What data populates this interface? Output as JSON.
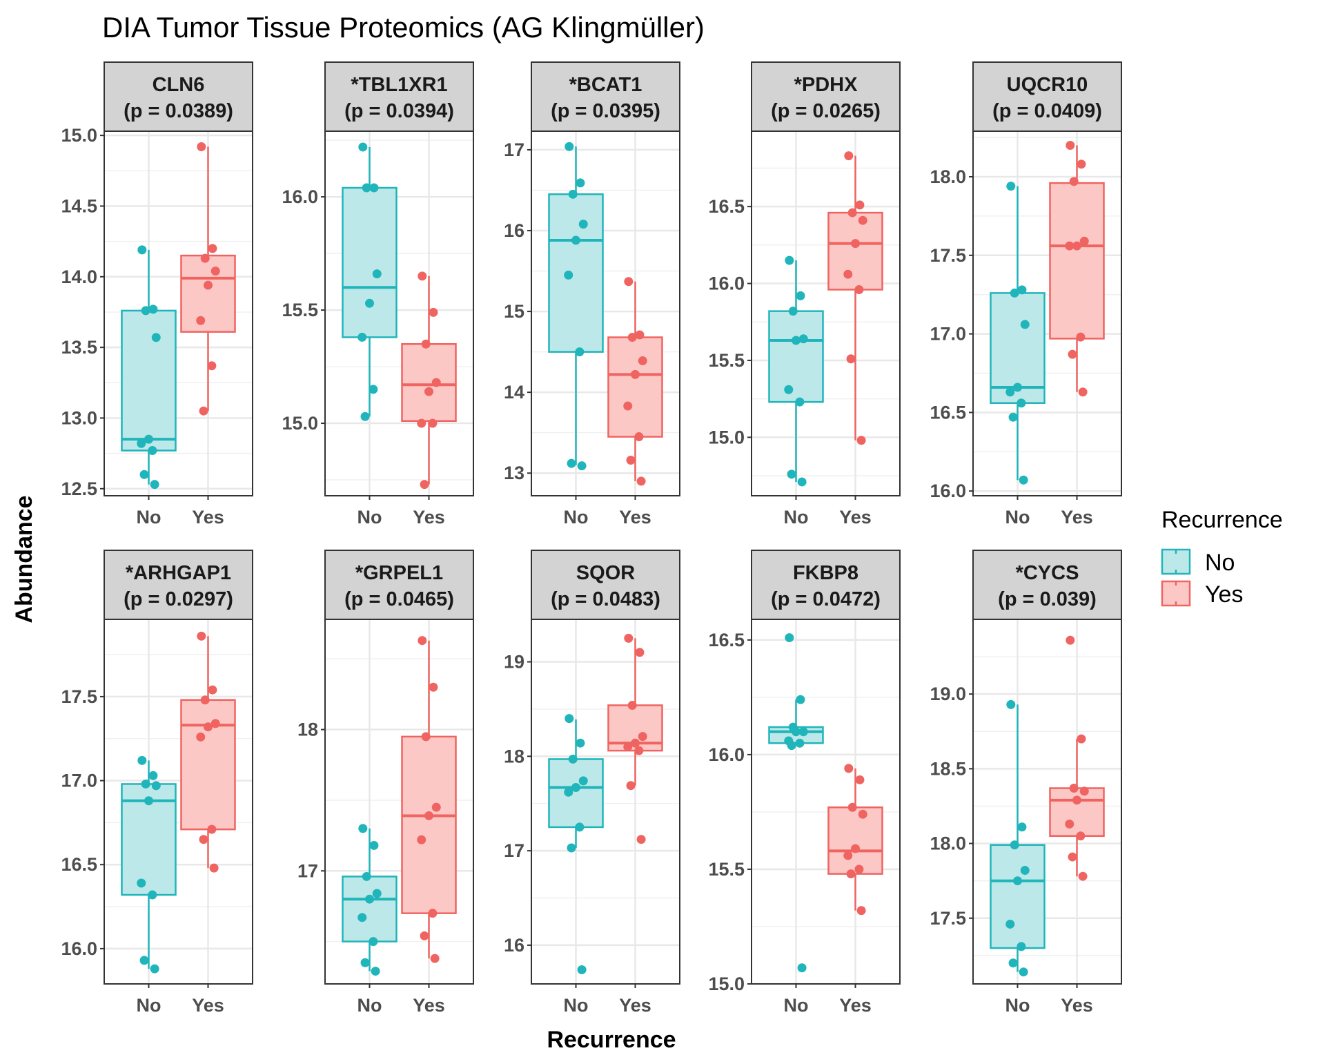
{
  "title": "DIA Tumor Tissue Proteomics (AG Klingmüller)",
  "colors": {
    "No": "#1fb5ba",
    "Yes": "#ef6461",
    "No_fill": "#bde8e9",
    "Yes_fill": "#fcc8c6",
    "strip": "#d3d3d3",
    "grid": "#e8e8e8"
  },
  "chart_data": {
    "type": "box",
    "xlabel": "Recurrence",
    "ylabel": "Abundance",
    "legend": {
      "title": "Recurrence",
      "entries": [
        "No",
        "Yes"
      ],
      "position": "right"
    },
    "categories": [
      "No",
      "Yes"
    ],
    "panels": [
      {
        "label": "CLN6",
        "p": "(p = 0.0389)",
        "ylim": [
          12.45,
          15.03
        ],
        "ticks": [
          12.5,
          13.0,
          13.5,
          14.0,
          14.5,
          15.0
        ],
        "tick_labels": [
          "12.5",
          "13.0",
          "13.5",
          "14.0",
          "14.5",
          "15.0"
        ],
        "groups": [
          {
            "name": "No",
            "box": [
              12.53,
              12.77,
              12.85,
              13.76,
              14.19
            ],
            "points": [
              14.19,
              13.77,
              13.76,
              13.57,
              12.85,
              12.82,
              12.77,
              12.6,
              12.53
            ]
          },
          {
            "name": "Yes",
            "box": [
              13.05,
              13.61,
              13.99,
              14.15,
              14.92
            ],
            "points": [
              14.92,
              14.2,
              14.13,
              14.04,
              13.94,
              13.69,
              13.37,
              13.05
            ]
          }
        ]
      },
      {
        "label": "*TBL1XR1",
        "p": "(p = 0.0394)",
        "ylim": [
          14.68,
          16.29
        ],
        "ticks": [
          15.0,
          15.5,
          16.0
        ],
        "tick_labels": [
          "15.0",
          "15.5",
          "16.0"
        ],
        "groups": [
          {
            "name": "No",
            "box": [
              15.03,
              15.38,
              15.6,
              16.04,
              16.22
            ],
            "points": [
              16.22,
              16.04,
              16.04,
              15.66,
              15.53,
              15.38,
              15.15,
              15.03
            ]
          },
          {
            "name": "Yes",
            "box": [
              14.73,
              15.01,
              15.17,
              15.35,
              15.65
            ],
            "points": [
              15.65,
              15.49,
              15.35,
              15.18,
              15.14,
              15.0,
              15.0,
              14.73
            ]
          }
        ]
      },
      {
        "label": "*BCAT1",
        "p": "(p = 0.0395)",
        "ylim": [
          12.72,
          17.23
        ],
        "ticks": [
          13,
          14,
          15,
          16,
          17
        ],
        "tick_labels": [
          "13",
          "14",
          "15",
          "16",
          "17"
        ],
        "groups": [
          {
            "name": "No",
            "box": [
              13.1,
              14.5,
              15.88,
              16.45,
              17.04
            ],
            "points": [
              17.04,
              16.59,
              16.45,
              16.08,
              15.88,
              15.45,
              14.5,
              13.12,
              13.09
            ]
          },
          {
            "name": "Yes",
            "box": [
              12.9,
              13.45,
              14.22,
              14.68,
              15.37
            ],
            "points": [
              15.37,
              14.71,
              14.68,
              14.39,
              14.22,
              13.83,
              13.45,
              13.16,
              12.9
            ]
          }
        ]
      },
      {
        "label": "*PDHX",
        "p": "(p = 0.0265)",
        "ylim": [
          14.62,
          16.99
        ],
        "ticks": [
          15.0,
          15.5,
          16.0,
          16.5
        ],
        "tick_labels": [
          "15.0",
          "15.5",
          "16.0",
          "16.5"
        ],
        "groups": [
          {
            "name": "No",
            "box": [
              14.71,
              15.23,
              15.63,
              15.82,
              16.15
            ],
            "points": [
              16.15,
              15.92,
              15.82,
              15.64,
              15.63,
              15.31,
              15.23,
              14.76,
              14.71
            ]
          },
          {
            "name": "Yes",
            "box": [
              14.98,
              15.96,
              16.26,
              16.46,
              16.83
            ],
            "points": [
              16.83,
              16.51,
              16.46,
              16.41,
              16.26,
              16.06,
              15.96,
              15.51,
              14.98
            ]
          }
        ]
      },
      {
        "label": "UQCR10",
        "p": "(p = 0.0409)",
        "ylim": [
          15.97,
          18.29
        ],
        "ticks": [
          16.0,
          16.5,
          17.0,
          17.5,
          18.0
        ],
        "tick_labels": [
          "16.0",
          "16.5",
          "17.0",
          "17.5",
          "18.0"
        ],
        "groups": [
          {
            "name": "No",
            "box": [
              16.07,
              16.56,
              16.66,
              17.26,
              17.94
            ],
            "points": [
              17.94,
              17.28,
              17.26,
              17.06,
              16.66,
              16.63,
              16.56,
              16.47,
              16.07
            ]
          },
          {
            "name": "Yes",
            "box": [
              16.63,
              16.97,
              17.56,
              17.96,
              18.2
            ],
            "points": [
              18.2,
              18.08,
              17.97,
              17.59,
              17.56,
              17.56,
              16.98,
              16.87,
              16.63
            ]
          }
        ]
      },
      {
        "label": "*ARHGAP1",
        "p": "(p = 0.0297)",
        "ylim": [
          15.79,
          17.96
        ],
        "ticks": [
          16.0,
          16.5,
          17.0,
          17.5
        ],
        "tick_labels": [
          "16.0",
          "16.5",
          "17.0",
          "17.5"
        ],
        "groups": [
          {
            "name": "No",
            "box": [
              15.88,
              16.32,
              16.88,
              16.98,
              17.12
            ],
            "points": [
              17.12,
              17.03,
              16.98,
              16.97,
              16.88,
              16.39,
              16.32,
              15.93,
              15.88
            ]
          },
          {
            "name": "Yes",
            "box": [
              16.48,
              16.71,
              17.33,
              17.48,
              17.86
            ],
            "points": [
              17.86,
              17.54,
              17.48,
              17.34,
              17.32,
              17.26,
              16.71,
              16.65,
              16.48
            ]
          }
        ]
      },
      {
        "label": "*GRPEL1",
        "p": "(p = 0.0465)",
        "ylim": [
          16.2,
          18.78
        ],
        "ticks": [
          17,
          18
        ],
        "tick_labels": [
          "17",
          "18"
        ],
        "groups": [
          {
            "name": "No",
            "box": [
              16.29,
              16.5,
              16.8,
              16.96,
              17.3
            ],
            "points": [
              17.3,
              17.18,
              16.96,
              16.84,
              16.8,
              16.67,
              16.5,
              16.35,
              16.29
            ]
          },
          {
            "name": "Yes",
            "box": [
              16.38,
              16.7,
              17.39,
              17.95,
              18.63
            ],
            "points": [
              18.63,
              18.3,
              17.95,
              17.45,
              17.39,
              17.22,
              16.7,
              16.54,
              16.38
            ]
          }
        ]
      },
      {
        "label": "SQOR",
        "p": "(p = 0.0483)",
        "ylim": [
          15.59,
          19.45
        ],
        "ticks": [
          16,
          17,
          18,
          19
        ],
        "tick_labels": [
          "16",
          "17",
          "18",
          "19"
        ],
        "groups": [
          {
            "name": "No",
            "box": [
              17.03,
              17.25,
              17.67,
              17.97,
              18.39
            ],
            "points": [
              18.4,
              18.14,
              17.97,
              17.74,
              17.67,
              17.62,
              17.25,
              17.03,
              15.74
            ]
          },
          {
            "name": "Yes",
            "box": [
              17.69,
              18.06,
              18.14,
              18.54,
              19.25
            ],
            "points": [
              19.25,
              19.1,
              18.54,
              18.21,
              18.14,
              18.1,
              18.06,
              17.69,
              17.12
            ]
          }
        ]
      },
      {
        "label": "FKBP8",
        "p": "(p = 0.0472)",
        "ylim": [
          15.0,
          16.59
        ],
        "ticks": [
          15.0,
          15.5,
          16.0,
          16.5
        ],
        "tick_labels": [
          "15.0",
          "15.5",
          "16.0",
          "16.5"
        ],
        "groups": [
          {
            "name": "No",
            "box": [
              16.04,
              16.05,
              16.1,
              16.12,
              16.24
            ],
            "points": [
              16.51,
              16.24,
              16.12,
              16.1,
              16.1,
              16.06,
              16.05,
              16.04,
              15.07
            ]
          },
          {
            "name": "Yes",
            "box": [
              15.32,
              15.48,
              15.58,
              15.77,
              15.94
            ],
            "points": [
              15.94,
              15.89,
              15.77,
              15.74,
              15.59,
              15.56,
              15.5,
              15.48,
              15.32
            ]
          }
        ]
      },
      {
        "label": "*CYCS",
        "p": "(p = 0.039)",
        "ylim": [
          17.06,
          19.5
        ],
        "ticks": [
          17.5,
          18.0,
          18.5,
          19.0
        ],
        "tick_labels": [
          "17.5",
          "18.0",
          "18.5",
          "19.0"
        ],
        "groups": [
          {
            "name": "No",
            "box": [
              17.14,
              17.3,
              17.75,
              17.99,
              18.93
            ],
            "points": [
              18.93,
              18.11,
              17.99,
              17.82,
              17.75,
              17.46,
              17.31,
              17.2,
              17.14
            ]
          },
          {
            "name": "Yes",
            "box": [
              17.78,
              18.05,
              18.29,
              18.37,
              18.7
            ],
            "points": [
              19.36,
              18.7,
              18.37,
              18.35,
              18.29,
              18.13,
              18.05,
              17.91,
              17.78
            ]
          }
        ]
      }
    ]
  }
}
